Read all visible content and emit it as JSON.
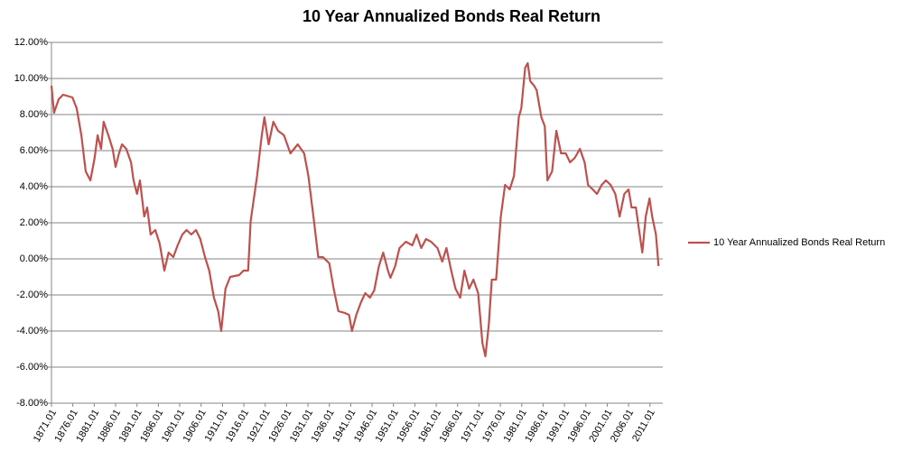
{
  "chart_data": {
    "type": "line",
    "title": "10 Year Annualized Bonds Real Return",
    "x": [
      1871.0,
      1871.6,
      1872.7,
      1873.7,
      1875.9,
      1876.9,
      1878.0,
      1879.0,
      1880.1,
      1881.1,
      1881.8,
      1882.6,
      1883.2,
      1884.3,
      1885.3,
      1886.0,
      1886.8,
      1887.5,
      1888.5,
      1889.6,
      1890.2,
      1891.0,
      1891.7,
      1892.7,
      1893.4,
      1894.2,
      1895.3,
      1896.3,
      1897.4,
      1898.4,
      1899.5,
      1900.5,
      1901.6,
      1902.6,
      1903.7,
      1904.8,
      1905.8,
      1906.9,
      1907.9,
      1909.0,
      1910.0,
      1910.7,
      1911.7,
      1912.8,
      1914.9,
      1915.9,
      1917.0,
      1917.6,
      1919.1,
      1920.2,
      1920.8,
      1921.8,
      1922.9,
      1924.0,
      1925.4,
      1926.9,
      1928.6,
      1930.1,
      1931.1,
      1932.4,
      1933.4,
      1934.5,
      1936.0,
      1937.0,
      1938.1,
      1939.6,
      1940.6,
      1941.3,
      1942.3,
      1943.4,
      1944.4,
      1945.5,
      1946.5,
      1947.6,
      1948.6,
      1949.7,
      1950.3,
      1951.4,
      1952.4,
      1953.9,
      1955.4,
      1956.4,
      1957.5,
      1958.6,
      1959.8,
      1961.3,
      1962.4,
      1963.4,
      1964.5,
      1965.5,
      1966.6,
      1967.6,
      1968.7,
      1969.7,
      1970.8,
      1971.8,
      1972.5,
      1973.3,
      1974.0,
      1975.0,
      1976.1,
      1977.1,
      1978.2,
      1979.2,
      1980.3,
      1980.9,
      1981.8,
      1982.4,
      1983.0,
      1983.9,
      1984.5,
      1985.6,
      1986.4,
      1987.0,
      1988.1,
      1989.1,
      1990.2,
      1991.3,
      1992.3,
      1993.4,
      1994.6,
      1995.7,
      1996.5,
      1997.6,
      1998.6,
      1999.7,
      2000.7,
      2001.8,
      2002.9,
      2003.9,
      2005.0,
      2006.0,
      2006.7,
      2007.7,
      2008.3,
      2009.2,
      2010.0,
      2010.9,
      2011.5,
      2012.4,
      2013.0
    ],
    "series": [
      {
        "name": "10 Year Annualized Bonds Real Return",
        "color": "#c0504d",
        "values": [
          9.6,
          8.1,
          8.85,
          9.1,
          8.95,
          8.35,
          6.85,
          4.85,
          4.35,
          5.6,
          6.85,
          6.1,
          7.6,
          6.85,
          6.1,
          5.1,
          5.85,
          6.35,
          6.1,
          5.35,
          4.35,
          3.6,
          4.35,
          2.35,
          2.85,
          1.35,
          1.6,
          0.85,
          -0.65,
          0.35,
          0.1,
          0.75,
          1.35,
          1.6,
          1.35,
          1.6,
          1.1,
          0.1,
          -0.65,
          -2.15,
          -2.9,
          -4.0,
          -1.65,
          -1.0,
          -0.9,
          -0.65,
          -0.65,
          2.1,
          4.6,
          6.85,
          7.85,
          6.35,
          7.6,
          7.1,
          6.85,
          5.85,
          6.35,
          5.85,
          4.6,
          2.1,
          0.1,
          0.1,
          -0.25,
          -1.65,
          -2.9,
          -3.0,
          -3.1,
          -4.0,
          -3.1,
          -2.4,
          -1.9,
          -2.15,
          -1.75,
          -0.4,
          0.35,
          -0.65,
          -1.05,
          -0.4,
          0.6,
          0.95,
          0.75,
          1.35,
          0.6,
          1.1,
          0.95,
          0.6,
          -0.15,
          0.6,
          -0.65,
          -1.65,
          -2.15,
          -0.65,
          -1.65,
          -1.15,
          -1.9,
          -4.65,
          -5.4,
          -3.65,
          -1.15,
          -1.15,
          2.35,
          4.1,
          3.85,
          4.6,
          7.85,
          8.35,
          10.6,
          10.85,
          9.85,
          9.6,
          9.35,
          7.85,
          7.35,
          4.35,
          4.85,
          7.1,
          5.85,
          5.85,
          5.35,
          5.6,
          6.1,
          5.35,
          4.1,
          3.85,
          3.6,
          4.1,
          4.35,
          4.1,
          3.6,
          2.35,
          3.6,
          3.85,
          2.85,
          2.85,
          1.85,
          0.35,
          2.35,
          3.35,
          2.35,
          1.35,
          -0.4
        ]
      }
    ],
    "xlim": [
      1871,
      2014
    ],
    "xticks": [
      {
        "value": 1871,
        "label": "1871.01"
      },
      {
        "value": 1876,
        "label": "1876.01"
      },
      {
        "value": 1881,
        "label": "1881.01"
      },
      {
        "value": 1886,
        "label": "1886.01"
      },
      {
        "value": 1891,
        "label": "1891.01"
      },
      {
        "value": 1896,
        "label": "1896.01"
      },
      {
        "value": 1901,
        "label": "1901.01"
      },
      {
        "value": 1906,
        "label": "1906.01"
      },
      {
        "value": 1911,
        "label": "1911.01"
      },
      {
        "value": 1916,
        "label": "1916.01"
      },
      {
        "value": 1921,
        "label": "1921.01"
      },
      {
        "value": 1926,
        "label": "1926.01"
      },
      {
        "value": 1931,
        "label": "1931.01"
      },
      {
        "value": 1936,
        "label": "1936.01"
      },
      {
        "value": 1941,
        "label": "1941.01"
      },
      {
        "value": 1946,
        "label": "1946.01"
      },
      {
        "value": 1951,
        "label": "1951.01"
      },
      {
        "value": 1956,
        "label": "1956.01"
      },
      {
        "value": 1961,
        "label": "1961.01"
      },
      {
        "value": 1966,
        "label": "1966.01"
      },
      {
        "value": 1971,
        "label": "1971.01"
      },
      {
        "value": 1976,
        "label": "1976.01"
      },
      {
        "value": 1981,
        "label": "1981.01"
      },
      {
        "value": 1986,
        "label": "1986.01"
      },
      {
        "value": 1991,
        "label": "1991.01"
      },
      {
        "value": 1996,
        "label": "1996.01"
      },
      {
        "value": 2001,
        "label": "2001.01"
      },
      {
        "value": 2006,
        "label": "2006.01"
      },
      {
        "value": 2011,
        "label": "2011.01"
      }
    ],
    "ylim": [
      -8,
      12
    ],
    "yticks": [
      {
        "value": -8,
        "label": "-8.00%"
      },
      {
        "value": -6,
        "label": "-6.00%"
      },
      {
        "value": -4,
        "label": "-4.00%"
      },
      {
        "value": -2,
        "label": "-2.00%"
      },
      {
        "value": 0,
        "label": "0.00%"
      },
      {
        "value": 2,
        "label": "2.00%"
      },
      {
        "value": 4,
        "label": "4.00%"
      },
      {
        "value": 6,
        "label": "6.00%"
      },
      {
        "value": 8,
        "label": "8.00%"
      },
      {
        "value": 10,
        "label": "10.00%"
      },
      {
        "value": 12,
        "label": "12.00%"
      }
    ],
    "grid": true,
    "legend": "right"
  }
}
